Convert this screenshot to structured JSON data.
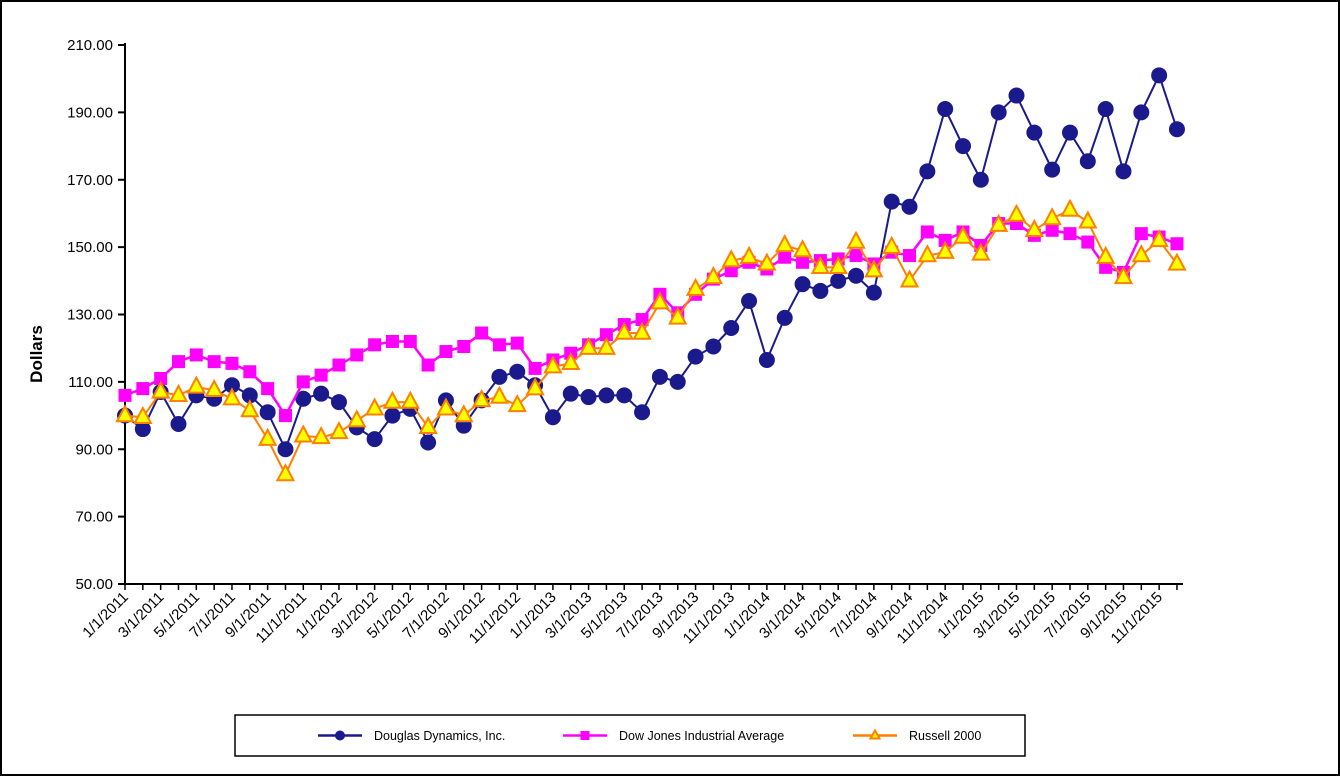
{
  "chart_data": {
    "type": "line",
    "title": "",
    "ylabel": "Dollars",
    "ylim": [
      50,
      210
    ],
    "ytick_step": 20,
    "ytick_labels": [
      "210.00",
      "190.00",
      "170.00",
      "150.00",
      "130.00",
      "110.00",
      "90.00",
      "70.00",
      "50.00"
    ],
    "ytick_values": [
      210,
      190,
      170,
      150,
      130,
      110,
      90,
      70,
      50
    ],
    "grid": false,
    "legend_position": "bottom",
    "x_label_every": 2,
    "x": [
      "1/1/2011",
      "2/1/2011",
      "3/1/2011",
      "4/1/2011",
      "5/1/2011",
      "6/1/2011",
      "7/1/2011",
      "8/1/2011",
      "9/1/2011",
      "10/1/2011",
      "11/1/2011",
      "12/1/2011",
      "1/1/2012",
      "2/1/2012",
      "3/1/2012",
      "4/1/2012",
      "5/1/2012",
      "6/1/2012",
      "7/1/2012",
      "8/1/2012",
      "9/1/2012",
      "10/1/2012",
      "11/1/2012",
      "12/1/2012",
      "1/1/2013",
      "2/1/2013",
      "3/1/2013",
      "4/1/2013",
      "5/1/2013",
      "6/1/2013",
      "7/1/2013",
      "8/1/2013",
      "9/1/2013",
      "10/1/2013",
      "11/1/2013",
      "12/1/2013",
      "1/1/2014",
      "2/1/2014",
      "3/1/2014",
      "4/1/2014",
      "5/1/2014",
      "6/1/2014",
      "7/1/2014",
      "8/1/2014",
      "9/1/2014",
      "10/1/2014",
      "11/1/2014",
      "12/1/2014",
      "1/1/2015",
      "2/1/2015",
      "3/1/2015",
      "4/1/2015",
      "5/1/2015",
      "6/1/2015",
      "7/1/2015",
      "8/1/2015",
      "9/1/2015",
      "10/1/2015",
      "11/1/2015",
      "12/1/2015"
    ],
    "series": [
      {
        "name": "Douglas Dynamics, Inc.",
        "marker": "circle",
        "line_color": "#1a1a8c",
        "marker_fill": "#1a1a8c",
        "marker_stroke": "#1a1a8c",
        "values": [
          100,
          96,
          107,
          97.5,
          106,
          105,
          109,
          106,
          101,
          90,
          105,
          106.5,
          104,
          96.5,
          93,
          100,
          102,
          92,
          104.5,
          97,
          104.5,
          111.5,
          113,
          109,
          99.5,
          106.5,
          105.5,
          106,
          106,
          101,
          111.5,
          110,
          117.5,
          120.5,
          126,
          134,
          116.5,
          129,
          139,
          137,
          140,
          141.5,
          136.5,
          163.5,
          162,
          172.5,
          191,
          180,
          170,
          190,
          195,
          184,
          173,
          184,
          175.5,
          191,
          172.5,
          190,
          201,
          185
        ]
      },
      {
        "name": "Dow Jones Industrial Average",
        "marker": "square",
        "line_color": "#ff00ff",
        "marker_fill": "#ff00ff",
        "marker_stroke": "#ff00ff",
        "values": [
          106,
          108,
          111,
          116,
          118,
          116,
          115.5,
          113,
          108,
          100,
          110,
          112,
          115,
          118,
          121,
          122,
          122,
          115,
          119,
          120.5,
          124.5,
          121,
          121.5,
          114,
          116.5,
          118.5,
          121,
          124,
          127,
          128.5,
          136,
          130.5,
          136,
          140.5,
          143,
          145.5,
          143.5,
          147,
          145.5,
          146,
          146.5,
          147.5,
          145,
          148.5,
          147.5,
          154.5,
          152,
          154.5,
          150.5,
          157,
          157,
          153.5,
          155,
          154,
          151.5,
          144,
          142.5,
          154,
          153,
          151
        ]
      },
      {
        "name": "Russell 2000",
        "marker": "triangle",
        "line_color": "#ff8000",
        "marker_fill": "#ffff00",
        "marker_stroke": "#ff8000",
        "values": [
          100,
          99.5,
          107,
          106,
          108.5,
          107.5,
          105,
          101.5,
          93,
          82.5,
          94,
          93.5,
          95,
          98.5,
          102,
          104,
          104,
          96.5,
          102,
          100,
          104.5,
          105.5,
          103,
          108,
          114.5,
          115.5,
          120,
          120,
          124.5,
          124.5,
          133.5,
          129,
          137.5,
          141,
          146,
          147,
          145,
          150.5,
          149,
          144,
          144,
          151.5,
          143,
          150,
          140,
          147.5,
          148.5,
          153,
          148,
          156.5,
          159.5,
          155,
          158.5,
          161,
          157.5,
          147,
          141,
          147.5,
          152,
          145
        ]
      }
    ]
  }
}
